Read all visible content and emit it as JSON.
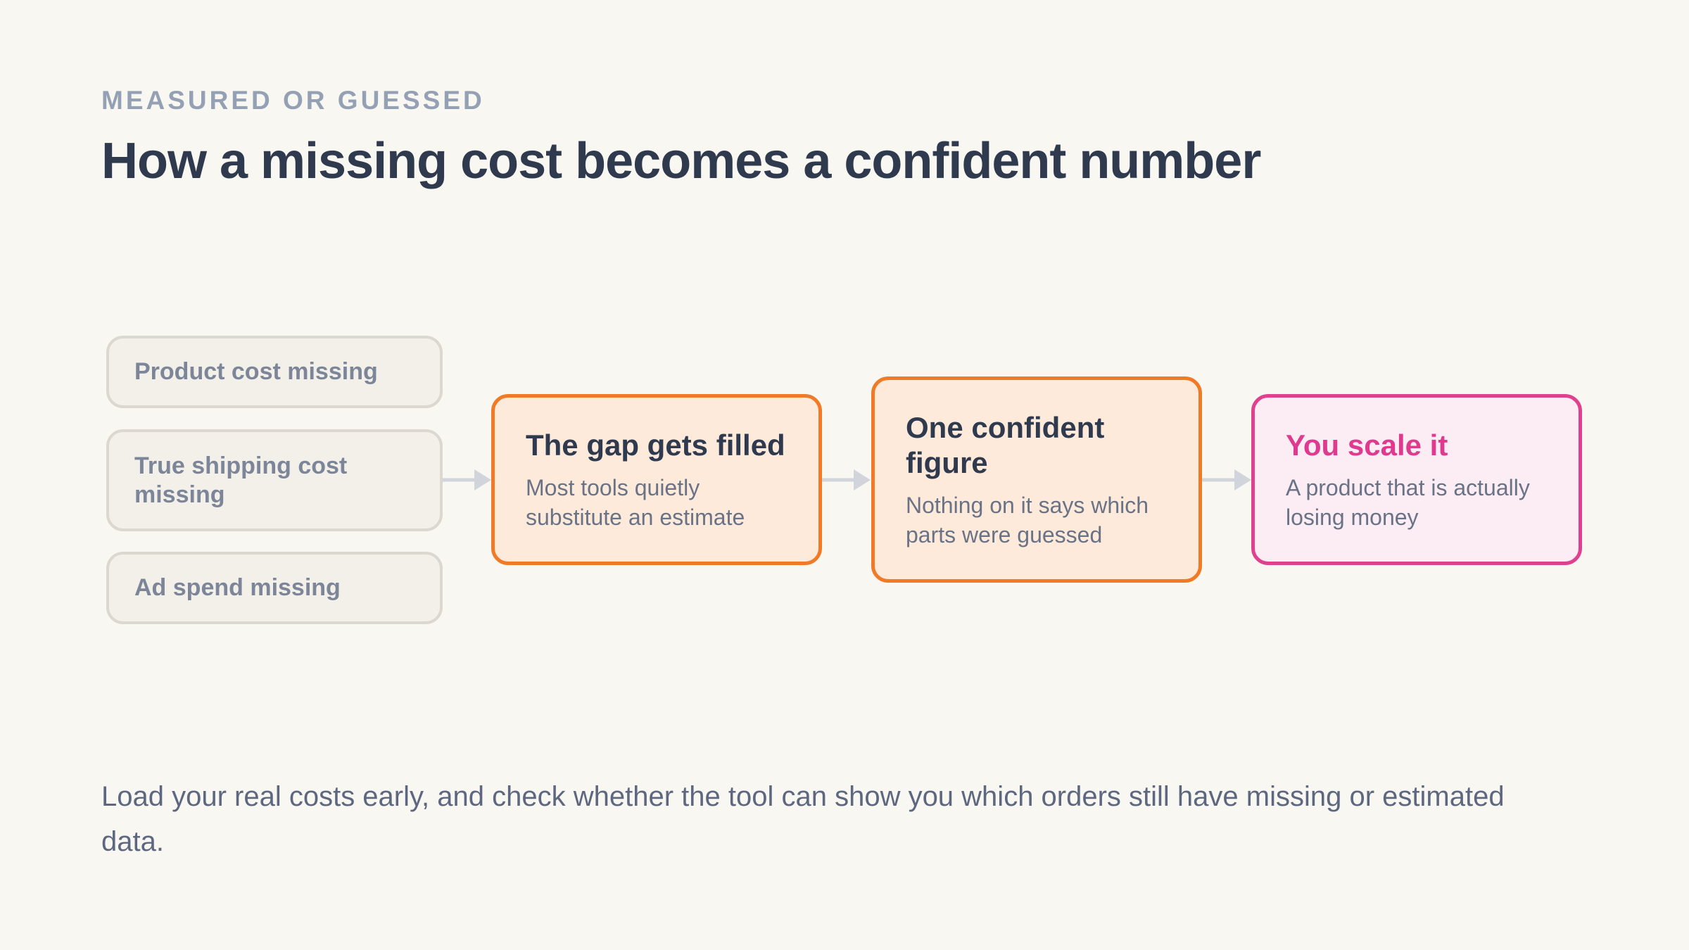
{
  "header": {
    "eyebrow": "MEASURED OR GUESSED",
    "title": "How a missing cost becomes a confident number"
  },
  "inputs": [
    {
      "label": "Product cost missing"
    },
    {
      "label": "True shipping cost missing"
    },
    {
      "label": "Ad spend missing"
    }
  ],
  "steps": [
    {
      "title": "The gap gets filled",
      "description": "Most tools quietly substitute an estimate"
    },
    {
      "title": "One confident figure",
      "description": "Nothing on it says which parts were guessed"
    },
    {
      "title": "You scale it",
      "description": "A product that is actually losing money"
    }
  ],
  "footer": {
    "text": "Load your real costs early, and check whether the tool can show you which orders still have missing or estimated data."
  },
  "colors": {
    "accent_orange": "#f07a25",
    "accent_pink": "#e0418f",
    "arrow": "#d1d5db"
  }
}
